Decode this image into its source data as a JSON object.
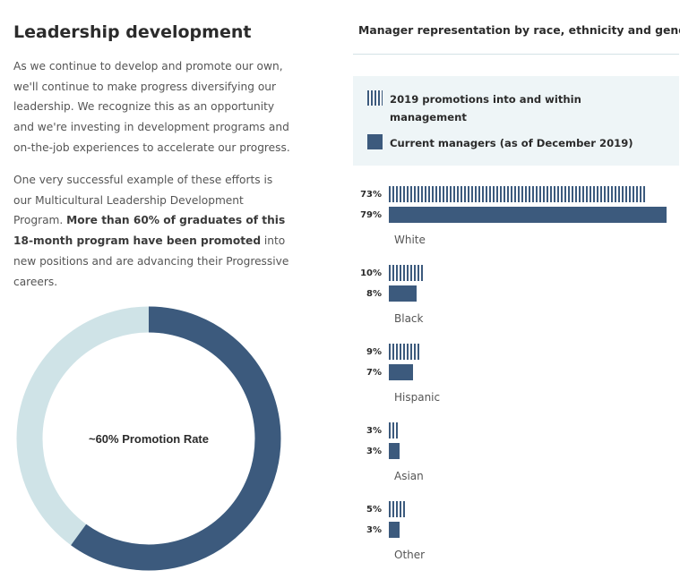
{
  "left": {
    "title": "Leadership development",
    "intro": "As we continue to develop and promote our own, we'll continue to make progress diversifying our leadership. We recognize this as an opportunity and we're investing in development programs and on-the-job experiences to accelerate our progress.",
    "program_lead": "One very successful example of these efforts is our Multicultural Leadership Development Program. ",
    "program_bold": "More than 60% of graduates of this 18-month program have been promoted",
    "program_tail": " into new positions and are advancing their Progressive careers.",
    "donut": {
      "label": "~60% Promotion Rate",
      "value_pct": 60,
      "color_fill": "#3c5a7d",
      "color_track": "#cfe3e7"
    }
  },
  "chart_data": {
    "type": "bar",
    "orientation": "horizontal",
    "title": "Manager representation by race, ethnicity and gender",
    "categories": [
      "White",
      "Black",
      "Hispanic",
      "Asian",
      "Other"
    ],
    "series": [
      {
        "name": "2019 promotions into and within management",
        "style": "hatched",
        "values": [
          73,
          10,
          9,
          3,
          5
        ],
        "labels": [
          "73%",
          "10%",
          "9%",
          "3%",
          "5%"
        ]
      },
      {
        "name": "Current managers (as of December 2019)",
        "style": "solid",
        "values": [
          79,
          8,
          7,
          3,
          3
        ],
        "labels": [
          "79%",
          "8%",
          "7%",
          "3%",
          "3%"
        ]
      }
    ],
    "xlim": [
      0,
      79
    ],
    "colors": {
      "bar": "#3c5a7d",
      "legend_bg": "#eef5f7"
    }
  }
}
